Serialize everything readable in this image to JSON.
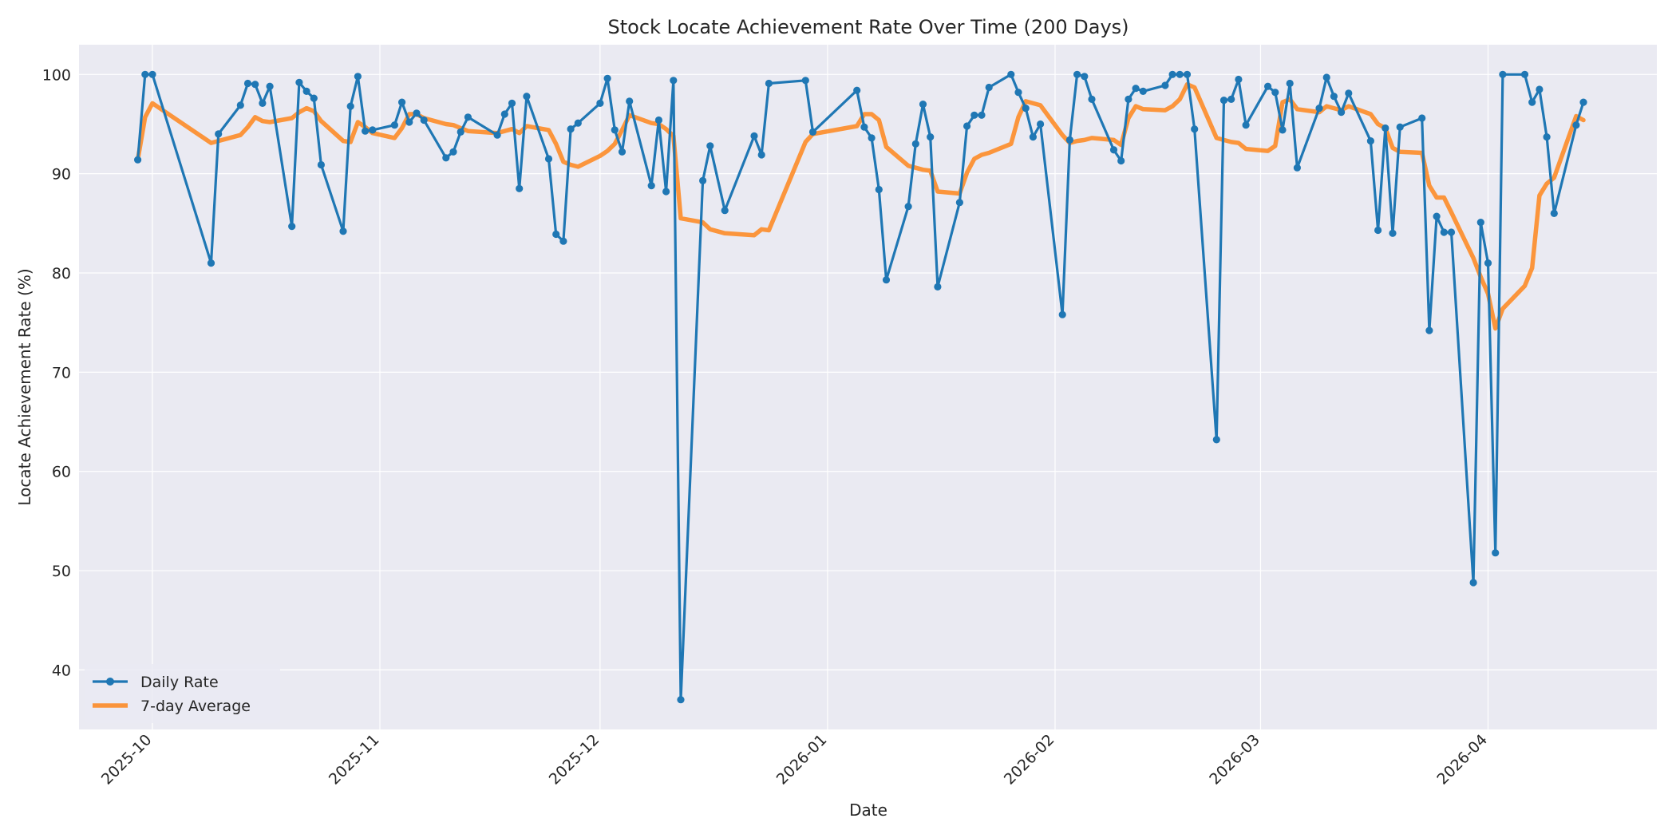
{
  "chart_data": {
    "type": "line",
    "title": "Stock Locate Achievement Rate Over Time (200 Days)",
    "xlabel": "Date",
    "ylabel": "Locate Achievement Rate (%)",
    "xlim": [
      "2025-09-21",
      "2026-04-24"
    ],
    "ylim": [
      34,
      103
    ],
    "x_ticks": [
      "2025-10",
      "2025-11",
      "2025-12",
      "2026-01",
      "2026-02",
      "2026-03",
      "2026-04"
    ],
    "y_ticks": [
      40,
      50,
      60,
      70,
      80,
      90,
      100
    ],
    "grid": true,
    "legend_position": "lower-left",
    "colors": {
      "daily": "#1f77b4",
      "average": "#ff7f0e",
      "plot_bg": "#eaeaf2"
    },
    "series": [
      {
        "name": "Daily Rate",
        "marker": "circle",
        "points": [
          [
            "2025-09-29",
            91.4
          ],
          [
            "2025-09-30",
            100.0
          ],
          [
            "2025-10-01",
            100.0
          ],
          [
            "2025-10-09",
            81.0
          ],
          [
            "2025-10-10",
            94.0
          ],
          [
            "2025-10-13",
            96.9
          ],
          [
            "2025-10-14",
            99.1
          ],
          [
            "2025-10-15",
            99.0
          ],
          [
            "2025-10-16",
            97.1
          ],
          [
            "2025-10-17",
            98.8
          ],
          [
            "2025-10-20",
            84.7
          ],
          [
            "2025-10-21",
            99.2
          ],
          [
            "2025-10-22",
            98.3
          ],
          [
            "2025-10-23",
            97.6
          ],
          [
            "2025-10-24",
            90.9
          ],
          [
            "2025-10-27",
            84.2
          ],
          [
            "2025-10-28",
            96.8
          ],
          [
            "2025-10-29",
            99.8
          ],
          [
            "2025-10-30",
            94.3
          ],
          [
            "2025-10-31",
            94.4
          ],
          [
            "2025-11-03",
            94.9
          ],
          [
            "2025-11-04",
            97.2
          ],
          [
            "2025-11-05",
            95.2
          ],
          [
            "2025-11-06",
            96.1
          ],
          [
            "2025-11-07",
            95.4
          ],
          [
            "2025-11-10",
            91.6
          ],
          [
            "2025-11-11",
            92.2
          ],
          [
            "2025-11-12",
            94.2
          ],
          [
            "2025-11-13",
            95.7
          ],
          [
            "2025-11-17",
            93.9
          ],
          [
            "2025-11-18",
            96.0
          ],
          [
            "2025-11-19",
            97.1
          ],
          [
            "2025-11-20",
            88.5
          ],
          [
            "2025-11-21",
            97.8
          ],
          [
            "2025-11-24",
            91.5
          ],
          [
            "2025-11-25",
            83.9
          ],
          [
            "2025-11-26",
            83.2
          ],
          [
            "2025-11-27",
            94.5
          ],
          [
            "2025-11-28",
            95.1
          ],
          [
            "2025-12-01",
            97.1
          ],
          [
            "2025-12-02",
            99.6
          ],
          [
            "2025-12-03",
            94.4
          ],
          [
            "2025-12-04",
            92.2
          ],
          [
            "2025-12-05",
            97.3
          ],
          [
            "2025-12-08",
            88.8
          ],
          [
            "2025-12-09",
            95.4
          ],
          [
            "2025-12-10",
            88.2
          ],
          [
            "2025-12-11",
            99.4
          ],
          [
            "2025-12-12",
            37.0
          ],
          [
            "2025-12-15",
            89.3
          ],
          [
            "2025-12-16",
            92.8
          ],
          [
            "2025-12-18",
            86.3
          ],
          [
            "2025-12-22",
            93.8
          ],
          [
            "2025-12-23",
            91.9
          ],
          [
            "2025-12-24",
            99.1
          ],
          [
            "2025-12-29",
            99.4
          ],
          [
            "2025-12-30",
            94.2
          ],
          [
            "2026-01-05",
            98.4
          ],
          [
            "2026-01-06",
            94.7
          ],
          [
            "2026-01-07",
            93.6
          ],
          [
            "2026-01-08",
            88.4
          ],
          [
            "2026-01-09",
            79.3
          ],
          [
            "2026-01-12",
            86.7
          ],
          [
            "2026-01-13",
            93.0
          ],
          [
            "2026-01-14",
            97.0
          ],
          [
            "2026-01-15",
            93.7
          ],
          [
            "2026-01-16",
            78.6
          ],
          [
            "2026-01-19",
            87.1
          ],
          [
            "2026-01-20",
            94.8
          ],
          [
            "2026-01-21",
            95.9
          ],
          [
            "2026-01-22",
            95.9
          ],
          [
            "2026-01-23",
            98.7
          ],
          [
            "2026-01-26",
            100.0
          ],
          [
            "2026-01-27",
            98.2
          ],
          [
            "2026-01-28",
            96.6
          ],
          [
            "2026-01-29",
            93.7
          ],
          [
            "2026-01-30",
            95.0
          ],
          [
            "2026-02-02",
            75.8
          ],
          [
            "2026-02-03",
            93.4
          ],
          [
            "2026-02-04",
            100.0
          ],
          [
            "2026-02-05",
            99.8
          ],
          [
            "2026-02-06",
            97.5
          ],
          [
            "2026-02-09",
            92.4
          ],
          [
            "2026-02-10",
            91.3
          ],
          [
            "2026-02-11",
            97.5
          ],
          [
            "2026-02-12",
            98.6
          ],
          [
            "2026-02-13",
            98.3
          ],
          [
            "2026-02-16",
            98.9
          ],
          [
            "2026-02-17",
            100.0
          ],
          [
            "2026-02-18",
            100.0
          ],
          [
            "2026-02-19",
            100.0
          ],
          [
            "2026-02-20",
            94.5
          ],
          [
            "2026-02-23",
            63.2
          ],
          [
            "2026-02-24",
            97.4
          ],
          [
            "2026-02-25",
            97.5
          ],
          [
            "2026-02-26",
            99.5
          ],
          [
            "2026-02-27",
            94.9
          ],
          [
            "2026-03-02",
            98.8
          ],
          [
            "2026-03-03",
            98.2
          ],
          [
            "2026-03-04",
            94.4
          ],
          [
            "2026-03-05",
            99.1
          ],
          [
            "2026-03-06",
            90.6
          ],
          [
            "2026-03-09",
            96.6
          ],
          [
            "2026-03-10",
            99.7
          ],
          [
            "2026-03-11",
            97.8
          ],
          [
            "2026-03-12",
            96.2
          ],
          [
            "2026-03-13",
            98.1
          ],
          [
            "2026-03-16",
            93.3
          ],
          [
            "2026-03-17",
            84.3
          ],
          [
            "2026-03-18",
            94.6
          ],
          [
            "2026-03-19",
            84.0
          ],
          [
            "2026-03-20",
            94.7
          ],
          [
            "2026-03-23",
            95.6
          ],
          [
            "2026-03-24",
            74.2
          ],
          [
            "2026-03-25",
            85.7
          ],
          [
            "2026-03-26",
            84.1
          ],
          [
            "2026-03-27",
            84.1
          ],
          [
            "2026-03-30",
            48.8
          ],
          [
            "2026-03-31",
            85.1
          ],
          [
            "2026-04-01",
            81.0
          ],
          [
            "2026-04-02",
            51.8
          ],
          [
            "2026-04-03",
            100.0
          ],
          [
            "2026-04-06",
            100.0
          ],
          [
            "2026-04-07",
            97.2
          ],
          [
            "2026-04-08",
            98.5
          ],
          [
            "2026-04-09",
            93.7
          ],
          [
            "2026-04-10",
            86.0
          ],
          [
            "2026-04-13",
            94.9
          ],
          [
            "2026-04-14",
            97.2
          ]
        ]
      },
      {
        "name": "7-day Average",
        "marker": "none",
        "points": [
          [
            "2025-09-29",
            91.4
          ],
          [
            "2025-09-30",
            95.7
          ],
          [
            "2025-10-01",
            97.1
          ],
          [
            "2025-10-09",
            93.1
          ],
          [
            "2025-10-10",
            93.3
          ],
          [
            "2025-10-13",
            93.9
          ],
          [
            "2025-10-14",
            94.7
          ],
          [
            "2025-10-15",
            95.7
          ],
          [
            "2025-10-16",
            95.3
          ],
          [
            "2025-10-17",
            95.2
          ],
          [
            "2025-10-20",
            95.6
          ],
          [
            "2025-10-21",
            96.2
          ],
          [
            "2025-10-22",
            96.6
          ],
          [
            "2025-10-23",
            96.3
          ],
          [
            "2025-10-24",
            95.3
          ],
          [
            "2025-10-27",
            93.3
          ],
          [
            "2025-10-28",
            93.2
          ],
          [
            "2025-10-29",
            95.2
          ],
          [
            "2025-10-30",
            94.7
          ],
          [
            "2025-10-31",
            94.1
          ],
          [
            "2025-11-03",
            93.6
          ],
          [
            "2025-11-04",
            94.6
          ],
          [
            "2025-11-05",
            96.0
          ],
          [
            "2025-11-06",
            96.0
          ],
          [
            "2025-11-07",
            95.6
          ],
          [
            "2025-11-10",
            95.0
          ],
          [
            "2025-11-11",
            94.9
          ],
          [
            "2025-11-12",
            94.6
          ],
          [
            "2025-11-13",
            94.3
          ],
          [
            "2025-11-17",
            94.1
          ],
          [
            "2025-11-18",
            94.3
          ],
          [
            "2025-11-19",
            94.5
          ],
          [
            "2025-11-20",
            94.1
          ],
          [
            "2025-11-21",
            94.8
          ],
          [
            "2025-11-24",
            94.4
          ],
          [
            "2025-11-25",
            93.0
          ],
          [
            "2025-11-26",
            91.2
          ],
          [
            "2025-11-27",
            90.9
          ],
          [
            "2025-11-28",
            90.7
          ],
          [
            "2025-12-01",
            91.8
          ],
          [
            "2025-12-02",
            92.3
          ],
          [
            "2025-12-03",
            93.0
          ],
          [
            "2025-12-04",
            94.4
          ],
          [
            "2025-12-05",
            95.9
          ],
          [
            "2025-12-08",
            95.1
          ],
          [
            "2025-12-09",
            95.0
          ],
          [
            "2025-12-10",
            94.5
          ],
          [
            "2025-12-11",
            93.8
          ],
          [
            "2025-12-12",
            85.5
          ],
          [
            "2025-12-15",
            85.1
          ],
          [
            "2025-12-16",
            84.4
          ],
          [
            "2025-12-18",
            84.0
          ],
          [
            "2025-12-22",
            83.8
          ],
          [
            "2025-12-23",
            84.4
          ],
          [
            "2025-12-24",
            84.3
          ],
          [
            "2025-12-29",
            93.2
          ],
          [
            "2025-12-30",
            94.0
          ],
          [
            "2026-01-05",
            94.8
          ],
          [
            "2026-01-06",
            96.0
          ],
          [
            "2026-01-07",
            96.0
          ],
          [
            "2026-01-08",
            95.4
          ],
          [
            "2026-01-09",
            92.7
          ],
          [
            "2026-01-12",
            90.8
          ],
          [
            "2026-01-13",
            90.6
          ],
          [
            "2026-01-14",
            90.4
          ],
          [
            "2026-01-15",
            90.3
          ],
          [
            "2026-01-16",
            88.2
          ],
          [
            "2026-01-19",
            88.0
          ],
          [
            "2026-01-20",
            90.1
          ],
          [
            "2026-01-21",
            91.5
          ],
          [
            "2026-01-22",
            91.9
          ],
          [
            "2026-01-23",
            92.1
          ],
          [
            "2026-01-26",
            93.0
          ],
          [
            "2026-01-27",
            95.7
          ],
          [
            "2026-01-28",
            97.3
          ],
          [
            "2026-01-29",
            97.1
          ],
          [
            "2026-01-30",
            96.9
          ],
          [
            "2026-02-02",
            93.9
          ],
          [
            "2026-02-03",
            93.1
          ],
          [
            "2026-02-04",
            93.3
          ],
          [
            "2026-02-05",
            93.4
          ],
          [
            "2026-02-06",
            93.6
          ],
          [
            "2026-02-09",
            93.4
          ],
          [
            "2026-02-10",
            92.9
          ],
          [
            "2026-02-11",
            95.6
          ],
          [
            "2026-02-12",
            96.8
          ],
          [
            "2026-02-13",
            96.5
          ],
          [
            "2026-02-16",
            96.4
          ],
          [
            "2026-02-17",
            96.8
          ],
          [
            "2026-02-18",
            97.5
          ],
          [
            "2026-02-19",
            99.0
          ],
          [
            "2026-02-20",
            98.7
          ],
          [
            "2026-02-23",
            93.6
          ],
          [
            "2026-02-24",
            93.4
          ],
          [
            "2026-02-25",
            93.2
          ],
          [
            "2026-02-26",
            93.1
          ],
          [
            "2026-02-27",
            92.5
          ],
          [
            "2026-03-02",
            92.3
          ],
          [
            "2026-03-03",
            92.8
          ],
          [
            "2026-03-04",
            97.2
          ],
          [
            "2026-03-05",
            97.5
          ],
          [
            "2026-03-06",
            96.5
          ],
          [
            "2026-03-09",
            96.2
          ],
          [
            "2026-03-10",
            96.8
          ],
          [
            "2026-03-11",
            96.6
          ],
          [
            "2026-03-12",
            96.4
          ],
          [
            "2026-03-13",
            96.8
          ],
          [
            "2026-03-16",
            96.0
          ],
          [
            "2026-03-17",
            95.0
          ],
          [
            "2026-03-18",
            94.6
          ],
          [
            "2026-03-19",
            92.6
          ],
          [
            "2026-03-20",
            92.2
          ],
          [
            "2026-03-23",
            92.1
          ],
          [
            "2026-03-24",
            88.8
          ],
          [
            "2026-03-25",
            87.6
          ],
          [
            "2026-03-26",
            87.6
          ],
          [
            "2026-03-27",
            86.1
          ],
          [
            "2026-03-30",
            81.5
          ],
          [
            "2026-03-31",
            79.6
          ],
          [
            "2026-04-01",
            77.9
          ],
          [
            "2026-04-02",
            74.4
          ],
          [
            "2026-04-03",
            76.4
          ],
          [
            "2026-04-06",
            78.7
          ],
          [
            "2026-04-07",
            80.5
          ],
          [
            "2026-04-08",
            87.8
          ],
          [
            "2026-04-09",
            89.0
          ],
          [
            "2026-04-10",
            89.6
          ],
          [
            "2026-04-13",
            95.8
          ],
          [
            "2026-04-14",
            95.4
          ]
        ]
      }
    ]
  }
}
